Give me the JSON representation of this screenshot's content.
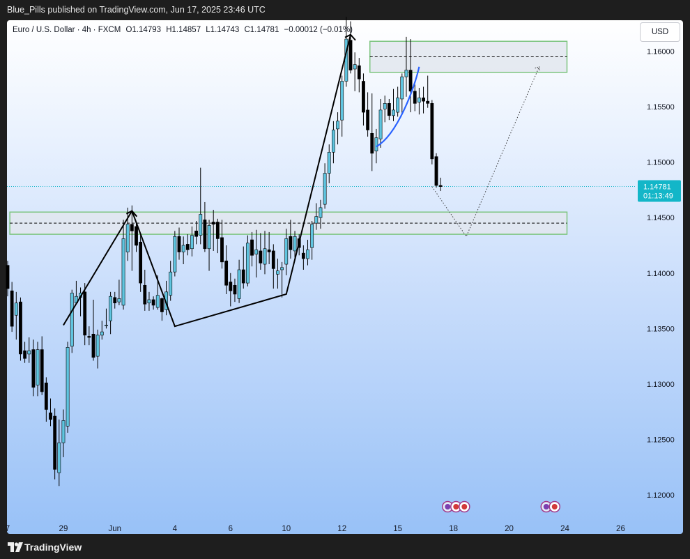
{
  "header": {
    "publish_line": "Blue_Pills published on TradingView.com, Jun 17, 2025 23:46 UTC"
  },
  "legend": {
    "symbol": "Euro / U.S. Dollar · 4h · FXCM",
    "open": "O1.14793",
    "high": "H1.14857",
    "low": "L1.14743",
    "close": "C1.14781",
    "change": "−0.00012 (−0.01%)"
  },
  "currency_button": "USD",
  "price_label": {
    "price": "1.14781",
    "countdown": "01:13:49"
  },
  "footer": {
    "brand": "TradingView"
  },
  "colors": {
    "up_candle": "#5fc5e0",
    "down_candle": "#000000",
    "zone_fill": "#e2e6ee",
    "zone_border": "#7cc47e",
    "curve": "#2962ff",
    "price_tag": "#13b6c8"
  },
  "chart_data": {
    "type": "candlestick",
    "symbol": "EURUSD",
    "timeframe": "4h",
    "y_ticks": [
      1.12,
      1.125,
      1.13,
      1.135,
      1.14,
      1.145,
      1.15,
      1.155,
      1.16
    ],
    "y_tick_labels": [
      "1.12000",
      "1.12500",
      "1.13000",
      "1.13500",
      "1.14000",
      "1.14500",
      "1.15000",
      "1.15500",
      "1.16000"
    ],
    "ylim": [
      1.1178,
      1.1628
    ],
    "x_ticks": [
      {
        "label": "7",
        "index": 0
      },
      {
        "label": "29",
        "index": 13
      },
      {
        "label": "Jun",
        "index": 25
      },
      {
        "label": "4",
        "index": 39
      },
      {
        "label": "6",
        "index": 52
      },
      {
        "label": "10",
        "index": 65
      },
      {
        "label": "12",
        "index": 78
      },
      {
        "label": "15",
        "index": 91
      },
      {
        "label": "18",
        "index": 104
      },
      {
        "label": "20",
        "index": 117
      },
      {
        "label": "24",
        "index": 130
      },
      {
        "label": "26",
        "index": 143
      }
    ],
    "last_price": 1.14781,
    "candles": [
      [
        1.1407,
        1.1411,
        1.1379,
        1.1386
      ],
      [
        1.1384,
        1.1392,
        1.1347,
        1.1352
      ],
      [
        1.1362,
        1.1383,
        1.134,
        1.1373
      ],
      [
        1.1374,
        1.1378,
        1.1321,
        1.1327
      ],
      [
        1.133,
        1.1338,
        1.1319,
        1.1323
      ],
      [
        1.1327,
        1.1342,
        1.1319,
        1.133
      ],
      [
        1.1331,
        1.134,
        1.1289,
        1.1297
      ],
      [
        1.1299,
        1.1338,
        1.1289,
        1.1331
      ],
      [
        1.1331,
        1.1343,
        1.129,
        1.1293
      ],
      [
        1.1301,
        1.1306,
        1.1266,
        1.1277
      ],
      [
        1.1274,
        1.1287,
        1.1262,
        1.1268
      ],
      [
        1.1271,
        1.1278,
        1.1214,
        1.1223
      ],
      [
        1.122,
        1.1268,
        1.1208,
        1.1247
      ],
      [
        1.1247,
        1.1277,
        1.1234,
        1.1267
      ],
      [
        1.1262,
        1.1338,
        1.1256,
        1.1333
      ],
      [
        1.1334,
        1.1385,
        1.1328,
        1.1382
      ],
      [
        1.1373,
        1.1393,
        1.1373,
        1.1379
      ],
      [
        1.1378,
        1.1387,
        1.1361,
        1.1382
      ],
      [
        1.1383,
        1.1391,
        1.1335,
        1.1344
      ],
      [
        1.1343,
        1.1352,
        1.1335,
        1.1342
      ],
      [
        1.1345,
        1.1376,
        1.1321,
        1.1324
      ],
      [
        1.1325,
        1.1349,
        1.1314,
        1.1344
      ],
      [
        1.1344,
        1.1357,
        1.134,
        1.1347
      ],
      [
        1.1353,
        1.1368,
        1.135,
        1.1353
      ],
      [
        1.1357,
        1.1383,
        1.1345,
        1.1379
      ],
      [
        1.1378,
        1.1383,
        1.1368,
        1.1373
      ],
      [
        1.1374,
        1.1394,
        1.1371,
        1.1377
      ],
      [
        1.1371,
        1.1448,
        1.1367,
        1.1431
      ],
      [
        1.1419,
        1.1459,
        1.1411,
        1.1444
      ],
      [
        1.1444,
        1.1461,
        1.1402,
        1.1438
      ],
      [
        1.1442,
        1.1446,
        1.1419,
        1.1425
      ],
      [
        1.1428,
        1.1435,
        1.1383,
        1.1391
      ],
      [
        1.1389,
        1.1403,
        1.1366,
        1.1372
      ],
      [
        1.1373,
        1.1383,
        1.1366,
        1.1376
      ],
      [
        1.1376,
        1.1379,
        1.1367,
        1.1371
      ],
      [
        1.1369,
        1.1398,
        1.1367,
        1.138
      ],
      [
        1.1377,
        1.1378,
        1.1357,
        1.1365
      ],
      [
        1.1367,
        1.1393,
        1.1362,
        1.1383
      ],
      [
        1.138,
        1.1411,
        1.1375,
        1.1401
      ],
      [
        1.1401,
        1.1438,
        1.1397,
        1.1433
      ],
      [
        1.1433,
        1.1441,
        1.1412,
        1.1419
      ],
      [
        1.1419,
        1.1433,
        1.1408,
        1.1425
      ],
      [
        1.1426,
        1.1435,
        1.1416,
        1.1421
      ],
      [
        1.1422,
        1.1442,
        1.1415,
        1.1434
      ],
      [
        1.1438,
        1.1447,
        1.1426,
        1.1433
      ],
      [
        1.1434,
        1.1495,
        1.1426,
        1.1453
      ],
      [
        1.1448,
        1.1464,
        1.1419,
        1.1422
      ],
      [
        1.1422,
        1.1448,
        1.1402,
        1.1443
      ],
      [
        1.1446,
        1.1457,
        1.142,
        1.1444
      ],
      [
        1.1446,
        1.1449,
        1.1418,
        1.1431
      ],
      [
        1.1432,
        1.1448,
        1.1404,
        1.141
      ],
      [
        1.1411,
        1.1425,
        1.1381,
        1.1389
      ],
      [
        1.1392,
        1.14,
        1.137,
        1.1384
      ],
      [
        1.1389,
        1.1395,
        1.1374,
        1.1381
      ],
      [
        1.1377,
        1.1412,
        1.1373,
        1.1403
      ],
      [
        1.1403,
        1.1424,
        1.1386,
        1.1391
      ],
      [
        1.1391,
        1.1434,
        1.1388,
        1.1427
      ],
      [
        1.143,
        1.1437,
        1.1406,
        1.1416
      ],
      [
        1.1417,
        1.1439,
        1.1396,
        1.1421
      ],
      [
        1.142,
        1.1436,
        1.1403,
        1.1409
      ],
      [
        1.1408,
        1.1438,
        1.1399,
        1.1422
      ],
      [
        1.1421,
        1.1437,
        1.1408,
        1.1419
      ],
      [
        1.142,
        1.1426,
        1.1386,
        1.1404
      ],
      [
        1.1399,
        1.1413,
        1.1386,
        1.1402
      ],
      [
        1.1403,
        1.141,
        1.1378,
        1.1405
      ],
      [
        1.1408,
        1.144,
        1.1398,
        1.1431
      ],
      [
        1.1433,
        1.1448,
        1.1413,
        1.1421
      ],
      [
        1.142,
        1.1438,
        1.1414,
        1.1433
      ],
      [
        1.1431,
        1.1435,
        1.1416,
        1.1423
      ],
      [
        1.1418,
        1.1425,
        1.1403,
        1.1413
      ],
      [
        1.1413,
        1.143,
        1.1407,
        1.1421
      ],
      [
        1.1423,
        1.1447,
        1.1412,
        1.1444
      ],
      [
        1.1445,
        1.1463,
        1.1439,
        1.1451
      ],
      [
        1.145,
        1.1466,
        1.144,
        1.1459
      ],
      [
        1.1462,
        1.1499,
        1.1458,
        1.149
      ],
      [
        1.149,
        1.1516,
        1.1481,
        1.1509
      ],
      [
        1.1509,
        1.1537,
        1.1499,
        1.1529
      ],
      [
        1.153,
        1.1545,
        1.1516,
        1.1537
      ],
      [
        1.1538,
        1.1578,
        1.1523,
        1.1573
      ],
      [
        1.1573,
        1.1631,
        1.1568,
        1.1611
      ],
      [
        1.161,
        1.1627,
        1.158,
        1.1583
      ],
      [
        1.1584,
        1.1599,
        1.1564,
        1.1588
      ],
      [
        1.1587,
        1.1594,
        1.1563,
        1.1575
      ],
      [
        1.1573,
        1.158,
        1.1533,
        1.1545
      ],
      [
        1.1547,
        1.1563,
        1.1523,
        1.1529
      ],
      [
        1.1526,
        1.1562,
        1.1492,
        1.1508
      ],
      [
        1.151,
        1.153,
        1.1499,
        1.1522
      ],
      [
        1.1521,
        1.1557,
        1.1513,
        1.1547
      ],
      [
        1.1548,
        1.156,
        1.1536,
        1.1553
      ],
      [
        1.1553,
        1.1557,
        1.1538,
        1.1542
      ],
      [
        1.1542,
        1.1566,
        1.1537,
        1.1547
      ],
      [
        1.1545,
        1.1568,
        1.1541,
        1.1558
      ],
      [
        1.1557,
        1.158,
        1.1544,
        1.1577
      ],
      [
        1.1577,
        1.1613,
        1.1559,
        1.1583
      ],
      [
        1.1583,
        1.1611,
        1.1545,
        1.1564
      ],
      [
        1.1564,
        1.157,
        1.1546,
        1.1553
      ],
      [
        1.1554,
        1.1567,
        1.1543,
        1.1558
      ],
      [
        1.1558,
        1.1568,
        1.1544,
        1.1555
      ],
      [
        1.1555,
        1.1578,
        1.1549,
        1.1553
      ],
      [
        1.1553,
        1.1556,
        1.1498,
        1.1503
      ],
      [
        1.1505,
        1.1508,
        1.1477,
        1.1479
      ],
      [
        1.1479,
        1.1486,
        1.1474,
        1.1478
      ]
    ],
    "zones": [
      {
        "name": "supply",
        "top": 1.1609,
        "bottom": 1.1581,
        "mid": 1.1595,
        "from": 85,
        "to": 130
      },
      {
        "name": "demand",
        "top": 1.1455,
        "bottom": 1.1435,
        "mid": 1.1445,
        "from": 1,
        "to": 130
      }
    ],
    "swing_path": [
      [
        13,
        1.1353
      ],
      [
        29,
        1.1456
      ],
      [
        39,
        1.1352
      ],
      [
        65,
        1.1381
      ],
      [
        80,
        1.1615
      ]
    ],
    "projection_path": [
      [
        99,
        1.1478
      ],
      [
        107,
        1.1433
      ],
      [
        124,
        1.1586
      ]
    ],
    "rounding_curve": [
      [
        86,
        1.1514
      ],
      [
        91,
        1.1525
      ],
      [
        95,
        1.1568
      ],
      [
        96,
        1.1586
      ]
    ],
    "event_icon_groups": [
      {
        "index": 102,
        "count": 3
      },
      {
        "index": 125,
        "count": 2
      }
    ]
  }
}
